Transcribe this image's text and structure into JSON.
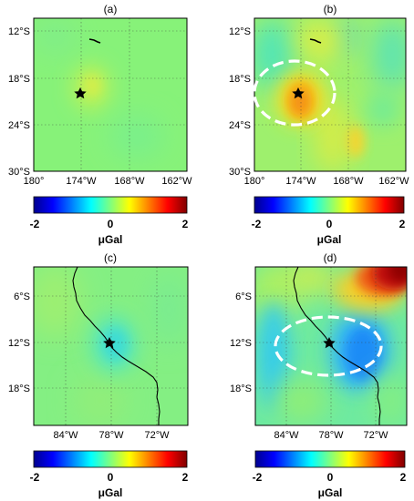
{
  "panels": [
    {
      "id": "a",
      "title": "(a)",
      "xticks": [
        "180°",
        "174°W",
        "168°W",
        "162°W"
      ],
      "yticks": [
        "12°S",
        "18°S",
        "24°S",
        "30°S"
      ],
      "colorbar": {
        "ticks": [
          "-2",
          "0",
          "2"
        ],
        "unit": "μGal"
      },
      "has_ellipse": false,
      "epicenter_marker": "star"
    },
    {
      "id": "b",
      "title": "(b)",
      "xticks": [
        "180°",
        "174°W",
        "168°W",
        "162°W"
      ],
      "yticks": [
        "12°S",
        "18°S",
        "24°S",
        "30°S"
      ],
      "colorbar": {
        "ticks": [
          "-2",
          "0",
          "2"
        ],
        "unit": "μGal"
      },
      "has_ellipse": true,
      "epicenter_marker": "star"
    },
    {
      "id": "c",
      "title": "(c)",
      "xticks": [
        "84°W",
        "78°W",
        "72°W"
      ],
      "yticks": [
        "6°S",
        "12°S",
        "18°S"
      ],
      "colorbar": {
        "ticks": [
          "-2",
          "0",
          "2"
        ],
        "unit": "μGal"
      },
      "has_ellipse": false,
      "epicenter_marker": "star"
    },
    {
      "id": "d",
      "title": "(d)",
      "xticks": [
        "84°W",
        "78°W",
        "72°W"
      ],
      "yticks": [
        "6°S",
        "12°S",
        "18°S"
      ],
      "colorbar": {
        "ticks": [
          "-2",
          "0",
          "2"
        ],
        "unit": "μGal"
      },
      "has_ellipse": true,
      "epicenter_marker": "star"
    }
  ],
  "chart_data": [
    {
      "type": "heatmap",
      "title": "(a)",
      "xlim_lon": [
        180,
        198
      ],
      "ylim_lat": [
        -10,
        -30
      ],
      "xticks_lon": [
        180,
        186,
        192,
        198
      ],
      "yticks_lat": [
        -12,
        -18,
        -24,
        -30
      ],
      "epicenter": {
        "lon": 186.5,
        "lat": -19.5
      },
      "colorbar_range": [
        -2,
        2
      ],
      "anomalies": [
        {
          "lon": 188,
          "lat": -19,
          "value": 0.5
        }
      ]
    },
    {
      "type": "heatmap",
      "title": "(b)",
      "xlim_lon": [
        180,
        198
      ],
      "ylim_lat": [
        -10,
        -30
      ],
      "xticks_lon": [
        180,
        186,
        192,
        198
      ],
      "yticks_lat": [
        -12,
        -18,
        -24,
        -30
      ],
      "epicenter": {
        "lon": 186.5,
        "lat": -19.5
      },
      "colorbar_range": [
        -2,
        2
      ],
      "anomalies": [
        {
          "lon": 187.5,
          "lat": -20.5,
          "value": 1.3
        },
        {
          "lon": 195.5,
          "lat": -26.5,
          "value": 0.6
        },
        {
          "lon": 193,
          "lat": -13,
          "value": -0.4
        }
      ]
    },
    {
      "type": "heatmap",
      "title": "(c)",
      "xlim_lon": [
        -88,
        -68
      ],
      "ylim_lat": [
        -2,
        -23
      ],
      "xticks_lon": [
        -84,
        -78,
        -72
      ],
      "yticks_lat": [
        -6,
        -12,
        -18
      ],
      "epicenter": {
        "lon": -76.5,
        "lat": -12.5
      },
      "colorbar_range": [
        -2,
        2
      ],
      "anomalies": [
        {
          "lon": -75.5,
          "lat": -12,
          "value": -0.25
        }
      ]
    },
    {
      "type": "heatmap",
      "title": "(d)",
      "xlim_lon": [
        -88,
        -68
      ],
      "ylim_lat": [
        -2,
        -23
      ],
      "xticks_lon": [
        -84,
        -78,
        -72
      ],
      "yticks_lat": [
        -6,
        -12,
        -18
      ],
      "epicenter": {
        "lon": -76.5,
        "lat": -12.5
      },
      "colorbar_range": [
        -2,
        2
      ],
      "anomalies": [
        {
          "lon": -70,
          "lat": -3,
          "value": 2.0
        },
        {
          "lon": -74,
          "lat": -13,
          "value": -1.0
        },
        {
          "lon": -82,
          "lat": -13,
          "value": -0.6
        }
      ]
    }
  ]
}
